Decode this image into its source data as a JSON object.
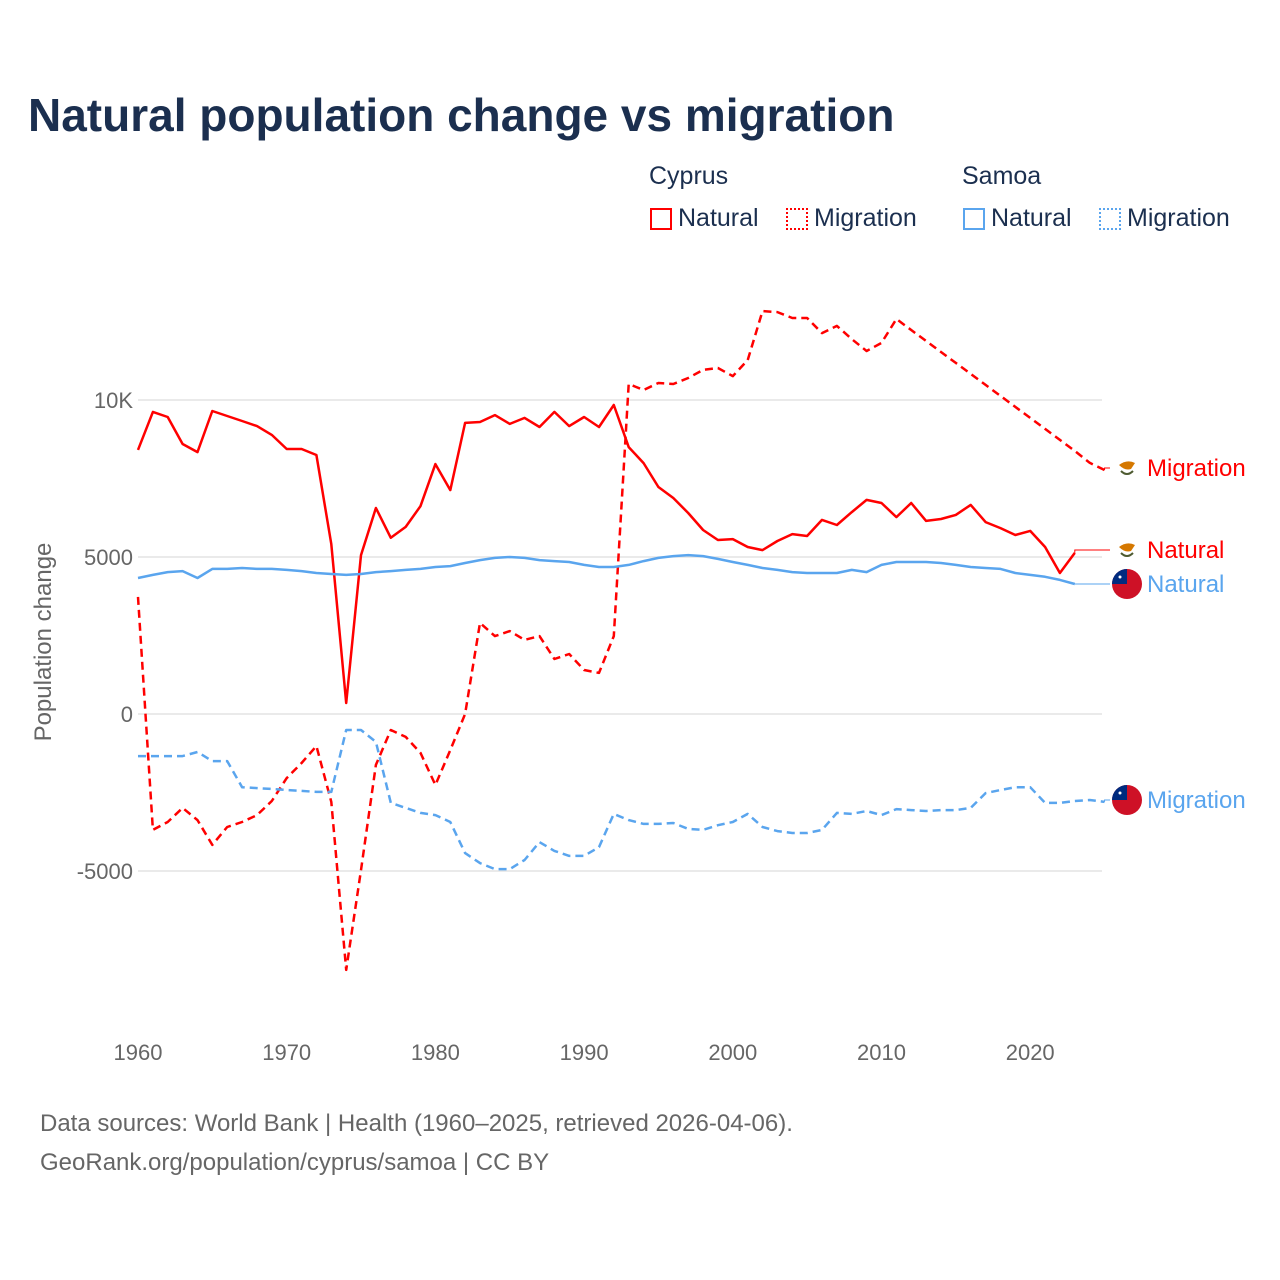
{
  "chart_data": {
    "type": "line",
    "title": "Natural population change vs migration",
    "xlabel": "",
    "ylabel": "Population change",
    "xlim": [
      1960,
      2025
    ],
    "ylim": [
      -9000,
      14000
    ],
    "x_ticks": [
      "1960",
      "1970",
      "1980",
      "1990",
      "2000",
      "2010",
      "2020"
    ],
    "y_ticks": [
      {
        "value": 10000,
        "label": "10K"
      },
      {
        "value": 5000,
        "label": "5000"
      },
      {
        "value": 0,
        "label": "0"
      },
      {
        "value": -5000,
        "label": "-5000"
      }
    ],
    "grid": true,
    "legend": {
      "placement": "top-right",
      "groups": [
        {
          "country": "Cyprus",
          "items": [
            "Natural",
            "Migration"
          ]
        },
        {
          "country": "Samoa",
          "items": [
            "Natural",
            "Migration"
          ]
        }
      ]
    },
    "series": [
      {
        "name": "Cyprus Natural",
        "label": "Natural",
        "country": "Cyprus",
        "style": "solid",
        "color": "#ff0000",
        "start_year": 1960,
        "values": [
          8410,
          9620,
          9460,
          8600,
          8340,
          9650,
          9490,
          9330,
          9170,
          8890,
          8440,
          8440,
          8250,
          5410,
          350,
          5060,
          6560,
          5610,
          5960,
          6620,
          7960,
          7130,
          9270,
          9300,
          9520,
          9240,
          9430,
          9140,
          9620,
          9170,
          9460,
          9140,
          9840,
          8500,
          7990,
          7230,
          6880,
          6400,
          5860,
          5540,
          5570,
          5320,
          5220,
          5510,
          5730,
          5670,
          6180,
          6020,
          6430,
          6820,
          6720,
          6270,
          6720,
          6150,
          6210,
          6340,
          6660,
          6110,
          5920,
          5700,
          5830,
          5320,
          4490,
          5130
        ]
      },
      {
        "name": "Cyprus Migration",
        "label": "Migration",
        "country": "Cyprus",
        "style": "dashed",
        "color": "#ff0000",
        "start_year": 1960,
        "values": [
          3730,
          -3690,
          -3440,
          -2990,
          -3380,
          -4170,
          -3600,
          -3440,
          -3220,
          -2770,
          -2040,
          -1560,
          -1020,
          -2800,
          -8150,
          -4970,
          -1620,
          -510,
          -730,
          -1240,
          -2260,
          -1150,
          0,
          2900,
          2480,
          2640,
          2360,
          2480,
          1750,
          1910,
          1400,
          1310,
          2480,
          10510,
          10320,
          10540,
          10510,
          10700,
          10960,
          11020,
          10760,
          11270,
          12830,
          12800,
          12610,
          12610,
          12130,
          12360,
          11940,
          11560,
          11820,
          12580,
          12230,
          11880,
          11530,
          11180,
          10830,
          10480,
          10130,
          9780,
          9430,
          9080,
          8730,
          8380,
          8000,
          7770
        ]
      },
      {
        "name": "Samoa Natural",
        "label": "Natural",
        "country": "Samoa",
        "style": "solid",
        "color": "#5aa5ee",
        "start_year": 1960,
        "values": [
          4330,
          4430,
          4520,
          4550,
          4330,
          4620,
          4620,
          4650,
          4620,
          4620,
          4590,
          4550,
          4490,
          4460,
          4430,
          4460,
          4520,
          4550,
          4590,
          4620,
          4680,
          4710,
          4810,
          4900,
          4970,
          5000,
          4970,
          4900,
          4870,
          4840,
          4750,
          4680,
          4680,
          4750,
          4870,
          4970,
          5030,
          5060,
          5030,
          4940,
          4840,
          4750,
          4650,
          4590,
          4520,
          4490,
          4490,
          4490,
          4590,
          4520,
          4750,
          4840,
          4840,
          4840,
          4810,
          4750,
          4680,
          4650,
          4620,
          4490,
          4430,
          4370,
          4270,
          4140
        ]
      },
      {
        "name": "Samoa Migration",
        "label": "Migration",
        "country": "Samoa",
        "style": "dashed",
        "color": "#5aa5ee",
        "start_year": 1960,
        "values": [
          -1340,
          -1340,
          -1340,
          -1340,
          -1210,
          -1500,
          -1500,
          -2330,
          -2360,
          -2390,
          -2420,
          -2450,
          -2480,
          -2480,
          -510,
          -510,
          -890,
          -2830,
          -2990,
          -3150,
          -3220,
          -3440,
          -4430,
          -4750,
          -4940,
          -4940,
          -4650,
          -4080,
          -4360,
          -4520,
          -4520,
          -4240,
          -3180,
          -3380,
          -3500,
          -3500,
          -3470,
          -3660,
          -3690,
          -3540,
          -3440,
          -3180,
          -3600,
          -3730,
          -3790,
          -3790,
          -3690,
          -3150,
          -3180,
          -3090,
          -3220,
          -3030,
          -3060,
          -3090,
          -3060,
          -3060,
          -2990,
          -2520,
          -2420,
          -2330,
          -2330,
          -2830,
          -2830,
          -2770,
          -2740,
          -2800
        ]
      }
    ]
  },
  "legend": {
    "cyprus": "Cyprus",
    "samoa": "Samoa",
    "natural": "Natural",
    "migration": "Migration"
  },
  "footer": {
    "line1": "Data sources: World Bank | Health (1960–2025, retrieved 2026-04-06).",
    "line2": "GeoRank.org/population/cyprus/samoa | CC BY"
  },
  "colors": {
    "cyprus": "#ff0000",
    "samoa": "#5aa5ee",
    "title": "#1b2f4f"
  }
}
